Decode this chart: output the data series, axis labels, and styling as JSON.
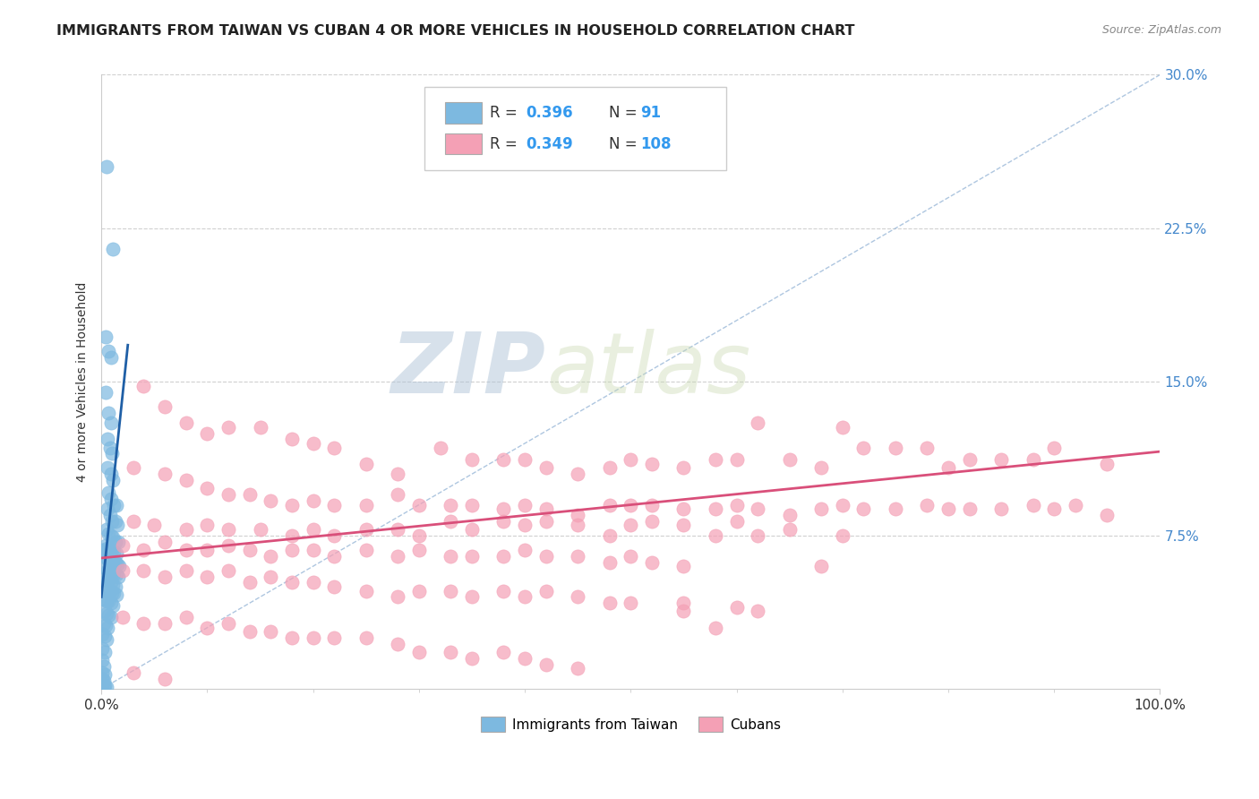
{
  "title": "IMMIGRANTS FROM TAIWAN VS CUBAN 4 OR MORE VEHICLES IN HOUSEHOLD CORRELATION CHART",
  "source": "Source: ZipAtlas.com",
  "ylabel": "4 or more Vehicles in Household",
  "xlim": [
    0.0,
    1.0
  ],
  "ylim": [
    0.0,
    0.3
  ],
  "xtick_positions": [
    0.0,
    1.0
  ],
  "xtick_labels": [
    "0.0%",
    "100.0%"
  ],
  "ytick_values": [
    0.075,
    0.15,
    0.225,
    0.3
  ],
  "ytick_labels": [
    "7.5%",
    "15.0%",
    "22.5%",
    "30.0%"
  ],
  "taiwan_color": "#7db9e0",
  "cuban_color": "#f4a0b5",
  "taiwan_line_color": "#1f5fa6",
  "cuban_line_color": "#d94f7a",
  "taiwan_R": "0.396",
  "taiwan_N": "91",
  "cuban_R": "0.349",
  "cuban_N": "108",
  "diagonal_color": "#9ab8d8",
  "background_color": "#ffffff",
  "grid_color": "#d0d0d0",
  "watermark_zip": "ZIP",
  "watermark_atlas": "atlas",
  "legend_taiwan": "Immigrants from Taiwan",
  "legend_cuban": "Cubans",
  "taiwan_line_x": [
    0.0,
    0.025
  ],
  "taiwan_line_y": [
    0.045,
    0.168
  ],
  "cuban_line_x": [
    0.0,
    1.0
  ],
  "cuban_line_y": [
    0.064,
    0.116
  ],
  "taiwan_scatter": [
    [
      0.005,
      0.255
    ],
    [
      0.011,
      0.215
    ],
    [
      0.004,
      0.172
    ],
    [
      0.007,
      0.165
    ],
    [
      0.009,
      0.162
    ],
    [
      0.004,
      0.145
    ],
    [
      0.007,
      0.135
    ],
    [
      0.009,
      0.13
    ],
    [
      0.006,
      0.122
    ],
    [
      0.008,
      0.118
    ],
    [
      0.01,
      0.115
    ],
    [
      0.006,
      0.108
    ],
    [
      0.009,
      0.105
    ],
    [
      0.011,
      0.102
    ],
    [
      0.007,
      0.096
    ],
    [
      0.009,
      0.093
    ],
    [
      0.012,
      0.09
    ],
    [
      0.014,
      0.09
    ],
    [
      0.006,
      0.088
    ],
    [
      0.008,
      0.085
    ],
    [
      0.01,
      0.082
    ],
    [
      0.013,
      0.082
    ],
    [
      0.015,
      0.08
    ],
    [
      0.005,
      0.078
    ],
    [
      0.007,
      0.076
    ],
    [
      0.009,
      0.075
    ],
    [
      0.011,
      0.074
    ],
    [
      0.013,
      0.072
    ],
    [
      0.016,
      0.072
    ],
    [
      0.004,
      0.07
    ],
    [
      0.006,
      0.069
    ],
    [
      0.008,
      0.068
    ],
    [
      0.01,
      0.068
    ],
    [
      0.012,
      0.067
    ],
    [
      0.014,
      0.066
    ],
    [
      0.003,
      0.065
    ],
    [
      0.005,
      0.064
    ],
    [
      0.007,
      0.063
    ],
    [
      0.009,
      0.063
    ],
    [
      0.011,
      0.062
    ],
    [
      0.013,
      0.062
    ],
    [
      0.015,
      0.061
    ],
    [
      0.017,
      0.06
    ],
    [
      0.004,
      0.059
    ],
    [
      0.006,
      0.058
    ],
    [
      0.008,
      0.058
    ],
    [
      0.01,
      0.057
    ],
    [
      0.012,
      0.056
    ],
    [
      0.014,
      0.056
    ],
    [
      0.016,
      0.055
    ],
    [
      0.003,
      0.054
    ],
    [
      0.005,
      0.053
    ],
    [
      0.007,
      0.053
    ],
    [
      0.009,
      0.052
    ],
    [
      0.011,
      0.051
    ],
    [
      0.013,
      0.05
    ],
    [
      0.004,
      0.049
    ],
    [
      0.006,
      0.048
    ],
    [
      0.008,
      0.048
    ],
    [
      0.01,
      0.047
    ],
    [
      0.012,
      0.047
    ],
    [
      0.014,
      0.046
    ],
    [
      0.003,
      0.044
    ],
    [
      0.005,
      0.043
    ],
    [
      0.007,
      0.043
    ],
    [
      0.009,
      0.042
    ],
    [
      0.011,
      0.041
    ],
    [
      0.003,
      0.038
    ],
    [
      0.005,
      0.037
    ],
    [
      0.007,
      0.036
    ],
    [
      0.009,
      0.035
    ],
    [
      0.002,
      0.032
    ],
    [
      0.004,
      0.031
    ],
    [
      0.006,
      0.03
    ],
    [
      0.001,
      0.027
    ],
    [
      0.003,
      0.026
    ],
    [
      0.005,
      0.024
    ],
    [
      0.001,
      0.02
    ],
    [
      0.003,
      0.018
    ],
    [
      0.001,
      0.014
    ],
    [
      0.002,
      0.011
    ],
    [
      0.001,
      0.008
    ],
    [
      0.003,
      0.007
    ],
    [
      0.001,
      0.005
    ],
    [
      0.002,
      0.004
    ],
    [
      0.001,
      0.002
    ],
    [
      0.003,
      0.002
    ],
    [
      0.005,
      0.001
    ],
    [
      0.002,
      0.001
    ],
    [
      0.001,
      0.068
    ],
    [
      0.002,
      0.068
    ]
  ],
  "cuban_scatter": [
    [
      0.04,
      0.148
    ],
    [
      0.06,
      0.138
    ],
    [
      0.08,
      0.13
    ],
    [
      0.1,
      0.125
    ],
    [
      0.12,
      0.128
    ],
    [
      0.15,
      0.128
    ],
    [
      0.18,
      0.122
    ],
    [
      0.2,
      0.12
    ],
    [
      0.22,
      0.118
    ],
    [
      0.25,
      0.11
    ],
    [
      0.28,
      0.105
    ],
    [
      0.32,
      0.118
    ],
    [
      0.35,
      0.112
    ],
    [
      0.38,
      0.112
    ],
    [
      0.4,
      0.112
    ],
    [
      0.42,
      0.108
    ],
    [
      0.45,
      0.105
    ],
    [
      0.48,
      0.108
    ],
    [
      0.5,
      0.112
    ],
    [
      0.52,
      0.11
    ],
    [
      0.55,
      0.108
    ],
    [
      0.58,
      0.112
    ],
    [
      0.6,
      0.112
    ],
    [
      0.62,
      0.13
    ],
    [
      0.65,
      0.112
    ],
    [
      0.68,
      0.108
    ],
    [
      0.7,
      0.128
    ],
    [
      0.72,
      0.118
    ],
    [
      0.75,
      0.118
    ],
    [
      0.78,
      0.118
    ],
    [
      0.8,
      0.108
    ],
    [
      0.82,
      0.112
    ],
    [
      0.85,
      0.112
    ],
    [
      0.88,
      0.112
    ],
    [
      0.9,
      0.118
    ],
    [
      0.95,
      0.11
    ],
    [
      0.03,
      0.108
    ],
    [
      0.06,
      0.105
    ],
    [
      0.08,
      0.102
    ],
    [
      0.1,
      0.098
    ],
    [
      0.12,
      0.095
    ],
    [
      0.14,
      0.095
    ],
    [
      0.16,
      0.092
    ],
    [
      0.18,
      0.09
    ],
    [
      0.2,
      0.092
    ],
    [
      0.22,
      0.09
    ],
    [
      0.25,
      0.09
    ],
    [
      0.28,
      0.095
    ],
    [
      0.3,
      0.09
    ],
    [
      0.33,
      0.09
    ],
    [
      0.35,
      0.09
    ],
    [
      0.38,
      0.088
    ],
    [
      0.4,
      0.09
    ],
    [
      0.42,
      0.088
    ],
    [
      0.45,
      0.085
    ],
    [
      0.48,
      0.09
    ],
    [
      0.5,
      0.09
    ],
    [
      0.52,
      0.09
    ],
    [
      0.55,
      0.088
    ],
    [
      0.58,
      0.088
    ],
    [
      0.6,
      0.09
    ],
    [
      0.62,
      0.088
    ],
    [
      0.65,
      0.085
    ],
    [
      0.68,
      0.088
    ],
    [
      0.7,
      0.09
    ],
    [
      0.72,
      0.088
    ],
    [
      0.75,
      0.088
    ],
    [
      0.78,
      0.09
    ],
    [
      0.8,
      0.088
    ],
    [
      0.82,
      0.088
    ],
    [
      0.85,
      0.088
    ],
    [
      0.88,
      0.09
    ],
    [
      0.9,
      0.088
    ],
    [
      0.92,
      0.09
    ],
    [
      0.95,
      0.085
    ],
    [
      0.03,
      0.082
    ],
    [
      0.05,
      0.08
    ],
    [
      0.08,
      0.078
    ],
    [
      0.1,
      0.08
    ],
    [
      0.12,
      0.078
    ],
    [
      0.15,
      0.078
    ],
    [
      0.18,
      0.075
    ],
    [
      0.2,
      0.078
    ],
    [
      0.22,
      0.075
    ],
    [
      0.25,
      0.078
    ],
    [
      0.28,
      0.078
    ],
    [
      0.3,
      0.075
    ],
    [
      0.33,
      0.082
    ],
    [
      0.35,
      0.078
    ],
    [
      0.38,
      0.082
    ],
    [
      0.4,
      0.08
    ],
    [
      0.42,
      0.082
    ],
    [
      0.45,
      0.08
    ],
    [
      0.48,
      0.075
    ],
    [
      0.5,
      0.08
    ],
    [
      0.52,
      0.082
    ],
    [
      0.55,
      0.08
    ],
    [
      0.58,
      0.075
    ],
    [
      0.6,
      0.082
    ],
    [
      0.62,
      0.075
    ],
    [
      0.65,
      0.078
    ],
    [
      0.68,
      0.06
    ],
    [
      0.7,
      0.075
    ],
    [
      0.02,
      0.07
    ],
    [
      0.04,
      0.068
    ],
    [
      0.06,
      0.072
    ],
    [
      0.08,
      0.068
    ],
    [
      0.1,
      0.068
    ],
    [
      0.12,
      0.07
    ],
    [
      0.14,
      0.068
    ],
    [
      0.16,
      0.065
    ],
    [
      0.18,
      0.068
    ],
    [
      0.2,
      0.068
    ],
    [
      0.22,
      0.065
    ],
    [
      0.25,
      0.068
    ],
    [
      0.28,
      0.065
    ],
    [
      0.3,
      0.068
    ],
    [
      0.33,
      0.065
    ],
    [
      0.35,
      0.065
    ],
    [
      0.38,
      0.065
    ],
    [
      0.4,
      0.068
    ],
    [
      0.42,
      0.065
    ],
    [
      0.45,
      0.065
    ],
    [
      0.48,
      0.062
    ],
    [
      0.5,
      0.065
    ],
    [
      0.52,
      0.062
    ],
    [
      0.55,
      0.06
    ],
    [
      0.02,
      0.058
    ],
    [
      0.04,
      0.058
    ],
    [
      0.06,
      0.055
    ],
    [
      0.08,
      0.058
    ],
    [
      0.1,
      0.055
    ],
    [
      0.12,
      0.058
    ],
    [
      0.14,
      0.052
    ],
    [
      0.16,
      0.055
    ],
    [
      0.18,
      0.052
    ],
    [
      0.2,
      0.052
    ],
    [
      0.22,
      0.05
    ],
    [
      0.25,
      0.048
    ],
    [
      0.28,
      0.045
    ],
    [
      0.3,
      0.048
    ],
    [
      0.33,
      0.048
    ],
    [
      0.35,
      0.045
    ],
    [
      0.38,
      0.048
    ],
    [
      0.4,
      0.045
    ],
    [
      0.42,
      0.048
    ],
    [
      0.45,
      0.045
    ],
    [
      0.48,
      0.042
    ],
    [
      0.5,
      0.042
    ],
    [
      0.55,
      0.042
    ],
    [
      0.55,
      0.038
    ],
    [
      0.6,
      0.04
    ],
    [
      0.62,
      0.038
    ],
    [
      0.02,
      0.035
    ],
    [
      0.04,
      0.032
    ],
    [
      0.06,
      0.032
    ],
    [
      0.08,
      0.035
    ],
    [
      0.1,
      0.03
    ],
    [
      0.12,
      0.032
    ],
    [
      0.14,
      0.028
    ],
    [
      0.16,
      0.028
    ],
    [
      0.18,
      0.025
    ],
    [
      0.2,
      0.025
    ],
    [
      0.22,
      0.025
    ],
    [
      0.25,
      0.025
    ],
    [
      0.28,
      0.022
    ],
    [
      0.3,
      0.018
    ],
    [
      0.33,
      0.018
    ],
    [
      0.35,
      0.015
    ],
    [
      0.38,
      0.018
    ],
    [
      0.4,
      0.015
    ],
    [
      0.42,
      0.012
    ],
    [
      0.45,
      0.01
    ],
    [
      0.03,
      0.008
    ],
    [
      0.06,
      0.005
    ],
    [
      0.58,
      0.03
    ]
  ]
}
